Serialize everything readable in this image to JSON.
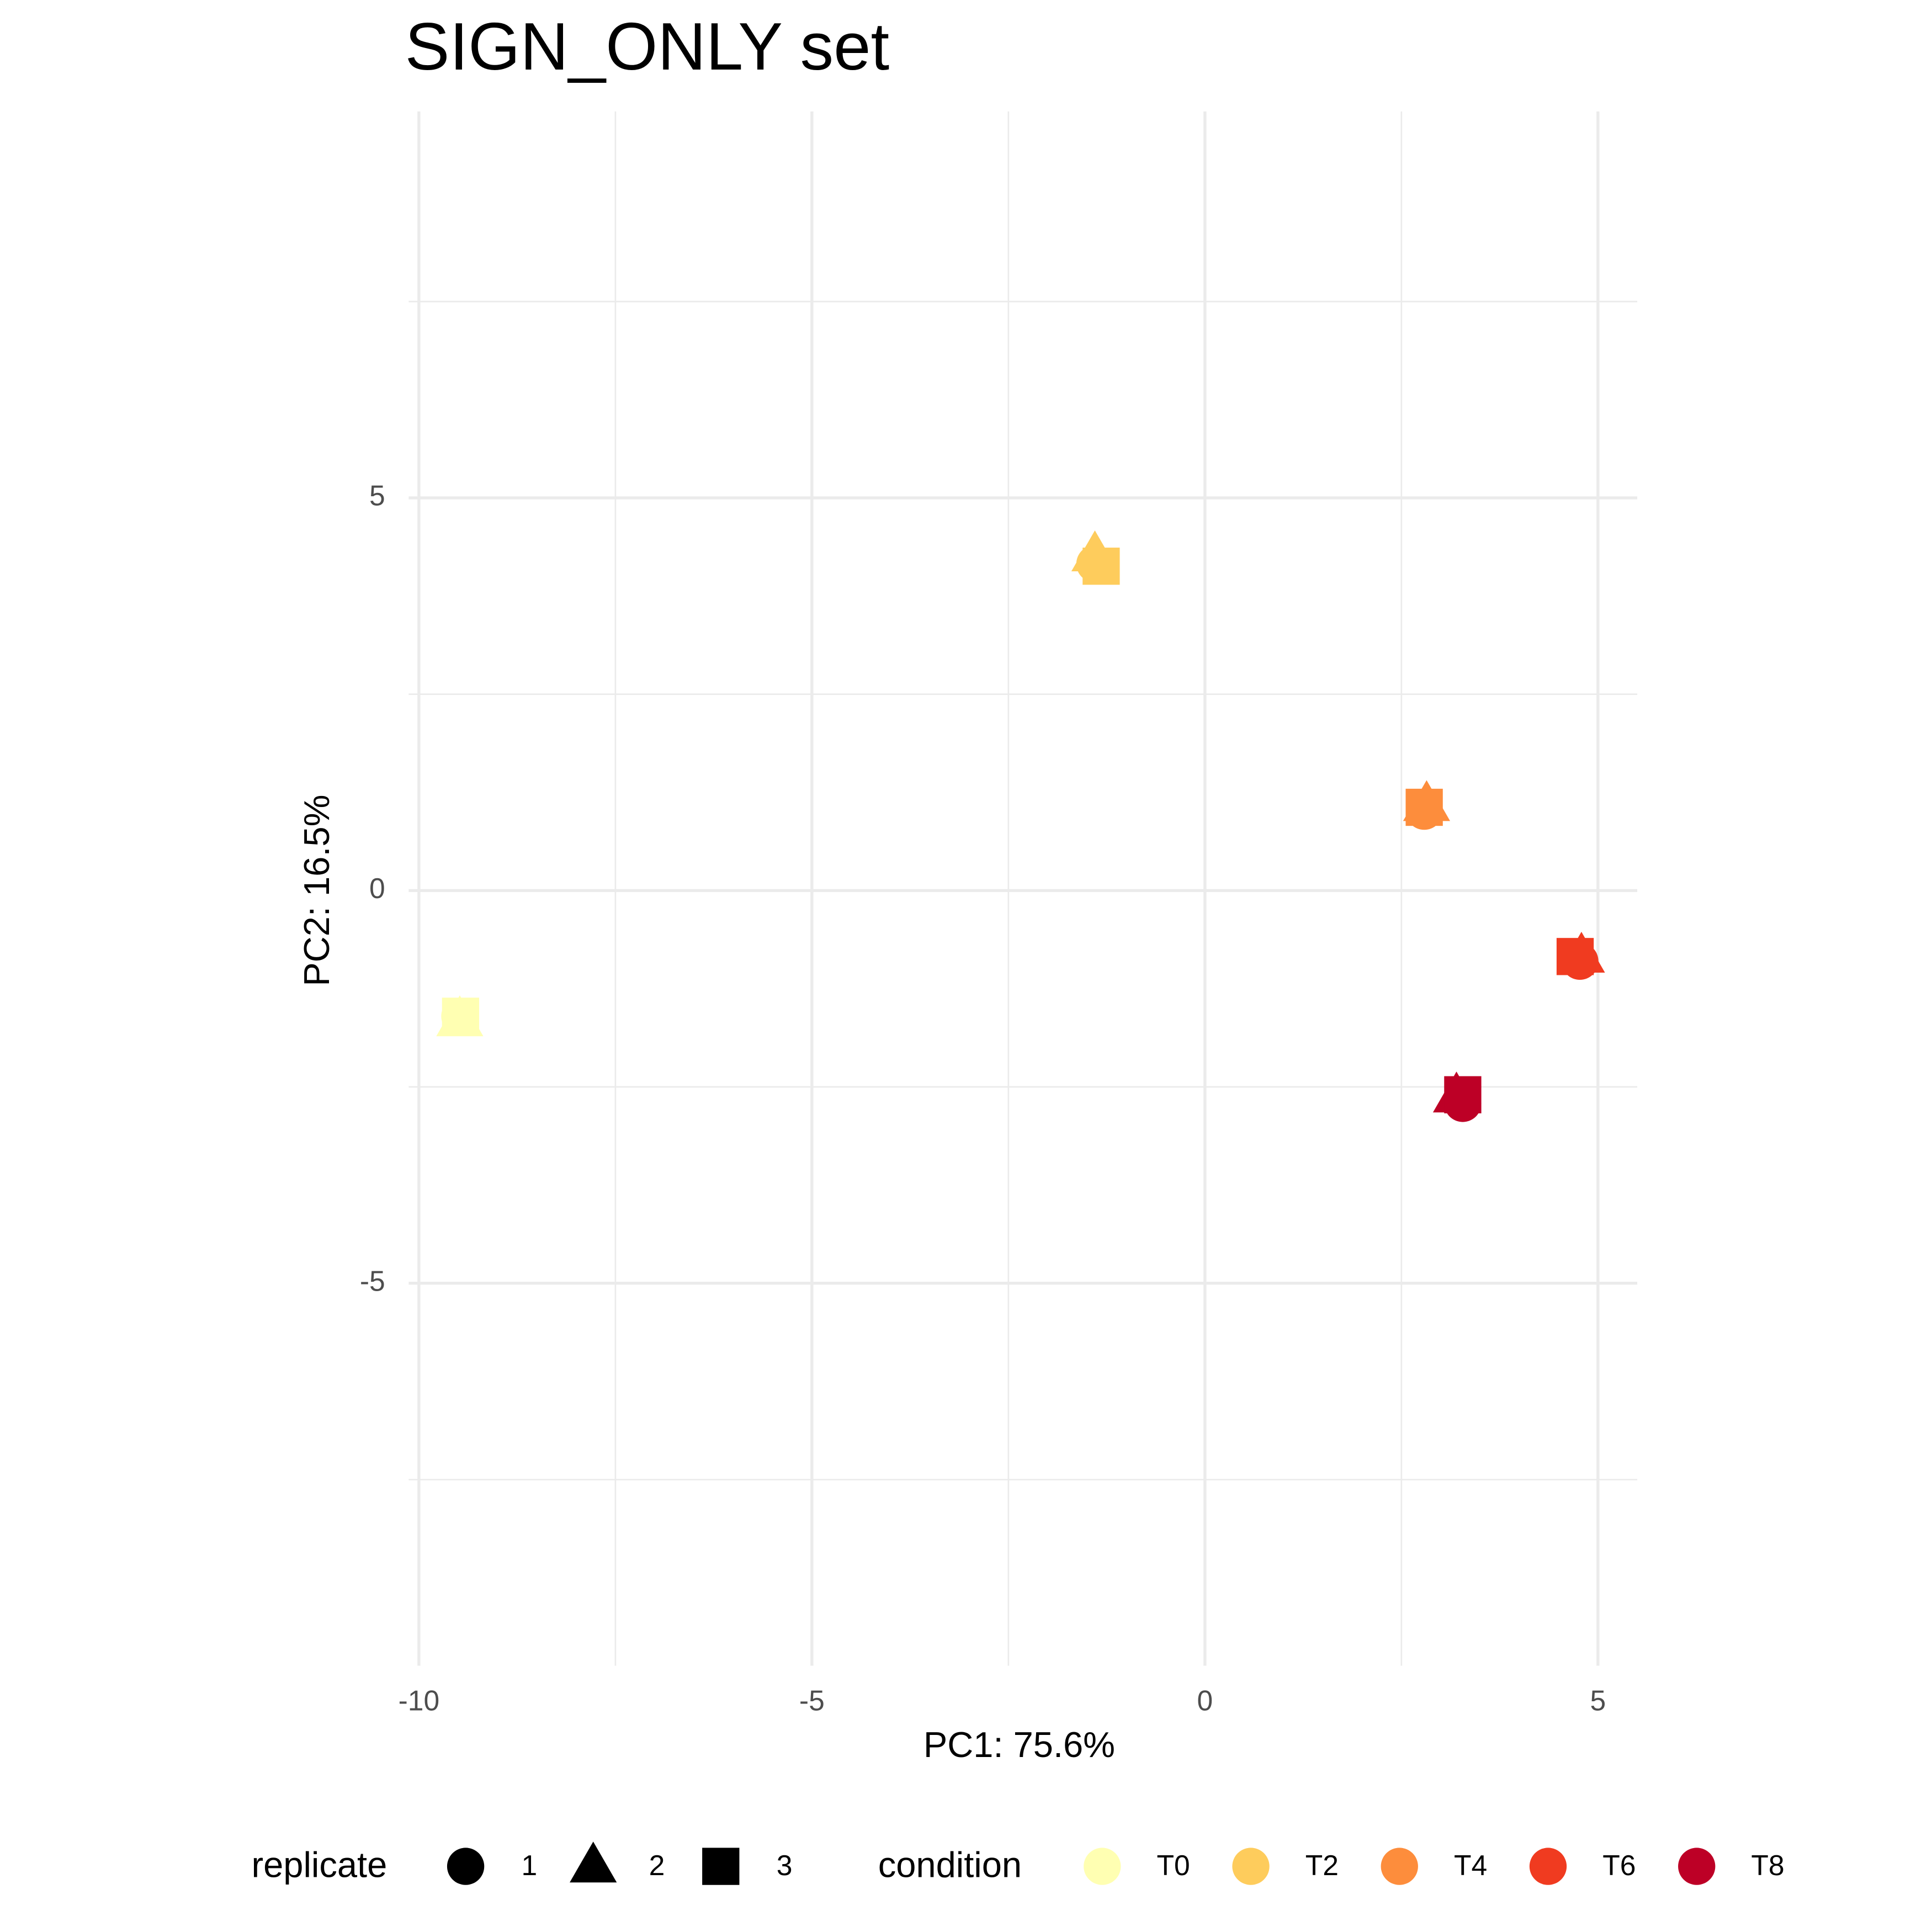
{
  "chart_data": {
    "type": "scatter",
    "title": "SIGN_ONLY set",
    "x_label": "PC1: 75.6%",
    "y_label": "PC2: 16.5%",
    "xlim": [
      -10.13,
      5.5
    ],
    "ylim": [
      -9.87,
      9.92
    ],
    "xticks": [
      -10,
      -5,
      0,
      5
    ],
    "yticks": [
      -5,
      0,
      5
    ],
    "xminorticks": [
      -7.5,
      -2.5,
      2.5
    ],
    "yminorticks": [
      -7.5,
      -2.5,
      2.5,
      7.5
    ],
    "grid": true,
    "legend_position": "bottom",
    "shape_legend_title": "replicate",
    "shapes": [
      {
        "name": "1",
        "shape": "circle"
      },
      {
        "name": "2",
        "shape": "triangle"
      },
      {
        "name": "3",
        "shape": "square"
      }
    ],
    "color_legend_title": "condition",
    "series": [
      {
        "name": "T0",
        "color": "#FFFFB2",
        "x": [
          -9.48,
          -9.48,
          -9.47
        ],
        "values": [
          -1.6,
          -1.65,
          -1.6
        ]
      },
      {
        "name": "T2",
        "color": "#FECC5C",
        "x": [
          -1.4,
          -1.4,
          -1.32
        ],
        "values": [
          4.16,
          4.27,
          4.13
        ]
      },
      {
        "name": "T4",
        "color": "#FD8D3C",
        "x": [
          2.79,
          2.82,
          2.79
        ],
        "values": [
          1.01,
          1.09,
          1.06
        ]
      },
      {
        "name": "T6",
        "color": "#F03B20",
        "x": [
          4.77,
          4.79,
          4.71
        ],
        "values": [
          -0.9,
          -0.84,
          -0.84
        ]
      },
      {
        "name": "T8",
        "color": "#BD0026",
        "x": [
          3.28,
          3.2,
          3.28
        ],
        "values": [
          -2.71,
          -2.62,
          -2.6
        ]
      }
    ]
  }
}
